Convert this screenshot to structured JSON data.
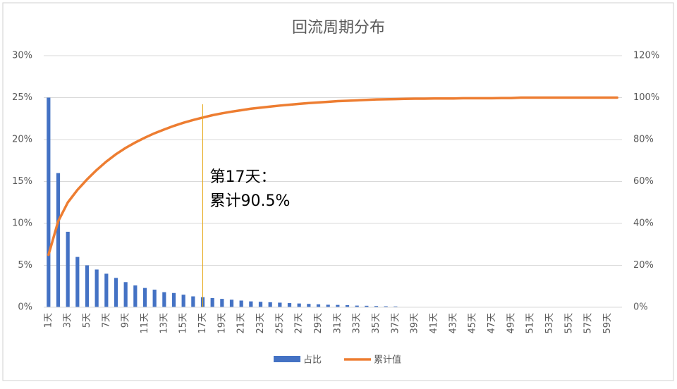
{
  "chart_data": {
    "type": "bar-line",
    "title": "回流周期分布",
    "categories": [
      "1天",
      null,
      "3天",
      null,
      "5天",
      null,
      "7天",
      null,
      "9天",
      null,
      "11天",
      null,
      "13天",
      null,
      "15天",
      null,
      "17天",
      null,
      "19天",
      null,
      "21天",
      null,
      "23天",
      null,
      "25天",
      null,
      "27天",
      null,
      "29天",
      null,
      "31天",
      null,
      "33天",
      null,
      "35天",
      null,
      "37天",
      null,
      "39天",
      null,
      "41天",
      null,
      "43天",
      null,
      "45天",
      null,
      "47天",
      null,
      "49天",
      null,
      "51天",
      null,
      "53天",
      null,
      "55天",
      null,
      "57天",
      null,
      "59天",
      null
    ],
    "series": [
      {
        "name": "占比",
        "type": "bar",
        "color": "#4472c4",
        "values": [
          25,
          16,
          9,
          6,
          5,
          4.5,
          4,
          3.5,
          3,
          2.6,
          2.3,
          2.1,
          1.8,
          1.7,
          1.5,
          1.3,
          1.2,
          1.1,
          1.0,
          0.9,
          0.8,
          0.7,
          0.65,
          0.6,
          0.55,
          0.5,
          0.45,
          0.4,
          0.35,
          0.3,
          0.28,
          0.25,
          0.2,
          0.18,
          0.15,
          0.12,
          0.1,
          0,
          0,
          0,
          0,
          0,
          0,
          0,
          0,
          0,
          0,
          0,
          0,
          0,
          0,
          0,
          0,
          0,
          0,
          0,
          0,
          0,
          0,
          0
        ]
      },
      {
        "name": "累计值",
        "type": "line",
        "axis": "y2",
        "color": "#ed7d31",
        "values": [
          25,
          41,
          50,
          56,
          61,
          65.5,
          69.5,
          73,
          76,
          78.6,
          80.9,
          83,
          84.8,
          86.5,
          88,
          89.3,
          90.5,
          91.6,
          92.5,
          93.3,
          94,
          94.7,
          95.2,
          95.7,
          96.2,
          96.6,
          97,
          97.4,
          97.7,
          98,
          98.3,
          98.5,
          98.7,
          98.9,
          99.1,
          99.2,
          99.3,
          99.4,
          99.5,
          99.5,
          99.6,
          99.6,
          99.6,
          99.7,
          99.7,
          99.7,
          99.7,
          99.8,
          99.8,
          100,
          100,
          100,
          100,
          100,
          100,
          100,
          100,
          100,
          100,
          100
        ]
      }
    ],
    "ylim": [
      0,
      30
    ],
    "yticks": [
      {
        "value": 0,
        "label": "0%"
      },
      {
        "value": 5,
        "label": "5%"
      },
      {
        "value": 10,
        "label": "10%"
      },
      {
        "value": 15,
        "label": "15%"
      },
      {
        "value": 20,
        "label": "20%"
      },
      {
        "value": 25,
        "label": "25%"
      },
      {
        "value": 30,
        "label": "30%"
      }
    ],
    "y2lim": [
      0,
      120
    ],
    "y2ticks": [
      {
        "value": 0,
        "label": "0%"
      },
      {
        "value": 20,
        "label": "20%"
      },
      {
        "value": 40,
        "label": "40%"
      },
      {
        "value": 60,
        "label": "60%"
      },
      {
        "value": 80,
        "label": "80%"
      },
      {
        "value": 100,
        "label": "100%"
      },
      {
        "value": 120,
        "label": "120%"
      }
    ],
    "grid": true,
    "legend": "bottom",
    "annotation": {
      "x": "17天",
      "lines": [
        "第17天：",
        "累计90.5%"
      ],
      "color": "#e6a817"
    }
  }
}
